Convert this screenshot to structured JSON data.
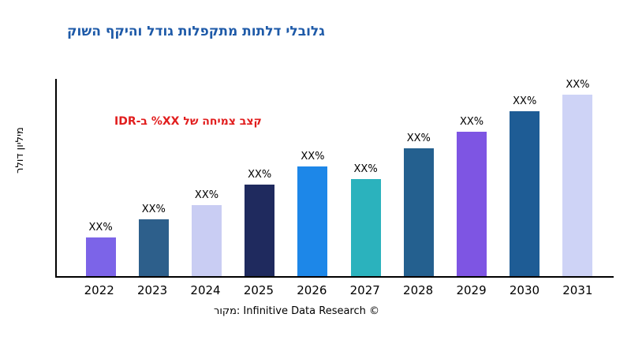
{
  "title": {
    "text": "גלובלי דלתות מתקפלות גודל והיקף השוק",
    "color": "#1e5aa8"
  },
  "annotation": {
    "text": "קצב צמיחה של XX% ב-IDR",
    "color": "#e11d1d"
  },
  "y_axis_label": "מיליון דולר",
  "source_caption": "מקור: Infinitive Data Research ©",
  "chart_data": {
    "type": "bar",
    "title": "גלובלי דלתות מתקפלות גודל והיקף השוק",
    "ylabel": "מיליון דולר",
    "xlabel": "",
    "categories": [
      "2022",
      "2023",
      "2024",
      "2025",
      "2026",
      "2027",
      "2028",
      "2029",
      "2030",
      "2031"
    ],
    "bar_value_labels": [
      "XX%",
      "XX%",
      "XX%",
      "XX%",
      "XX%",
      "XX%",
      "XX%",
      "XX%",
      "XX%",
      "XX%"
    ],
    "values_relative_pct_of_max": [
      21,
      31,
      39,
      50,
      60,
      53,
      70,
      79,
      90,
      100
    ],
    "bar_colors": [
      "#7c64e8",
      "#2d5f8b",
      "#c9cdf3",
      "#1f2a5e",
      "#1d87e8",
      "#2bb2bd",
      "#24608f",
      "#7e55e3",
      "#1e5c95",
      "#ced3f6"
    ],
    "annotation": "קצב צמיחה של XX% ב-IDR",
    "grid": false,
    "y_tick_labels": "none (values shown as XX% placeholders)",
    "legend": "none"
  }
}
